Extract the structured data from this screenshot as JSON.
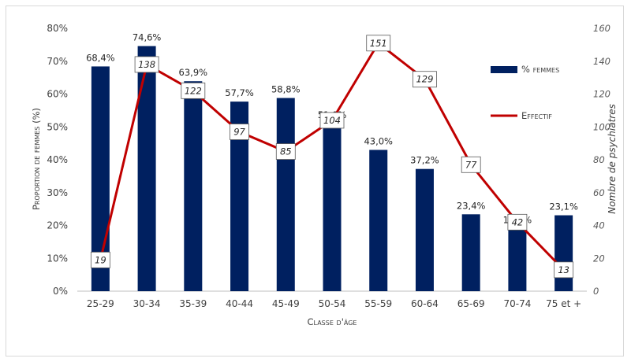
{
  "chart_data": {
    "type": "bar",
    "categories": [
      "25-29",
      "30-34",
      "35-39",
      "40-44",
      "45-49",
      "50-54",
      "55-59",
      "60-64",
      "65-69",
      "70-74",
      "75 et +"
    ],
    "series": [
      {
        "name": "% femmes",
        "type": "bar",
        "axis": "left",
        "color": "#002060",
        "values": [
          68.4,
          74.6,
          63.9,
          57.7,
          58.8,
          51.0,
          43.0,
          37.2,
          23.4,
          19.0,
          23.1
        ],
        "labels": [
          "68,4%",
          "74,6%",
          "63,9%",
          "57,7%",
          "58,8%",
          "51,0%",
          "43,0%",
          "37,2%",
          "23,4%",
          "19,0%",
          "23,1%"
        ]
      },
      {
        "name": "Effectif",
        "type": "line",
        "axis": "right",
        "color": "#c00000",
        "values": [
          19,
          138,
          122,
          97,
          85,
          104,
          151,
          129,
          77,
          42,
          13
        ],
        "labels": [
          "19",
          "138",
          "122",
          "97",
          "85",
          "104",
          "151",
          "129",
          "77",
          "42",
          "13"
        ]
      }
    ],
    "xlabel": "Classe d'âge",
    "ylabel": "Proportion de femmes (%)",
    "y2label": "Nombre de psychiatres",
    "ylim": [
      0,
      80
    ],
    "y2lim": [
      0,
      160
    ],
    "yticks": [
      "0%",
      "10%",
      "20%",
      "30%",
      "40%",
      "50%",
      "60%",
      "70%",
      "80%"
    ],
    "y2ticks": [
      "0",
      "20",
      "40",
      "60",
      "80",
      "100",
      "120",
      "140",
      "160"
    ],
    "grid": false,
    "legend": "right"
  }
}
